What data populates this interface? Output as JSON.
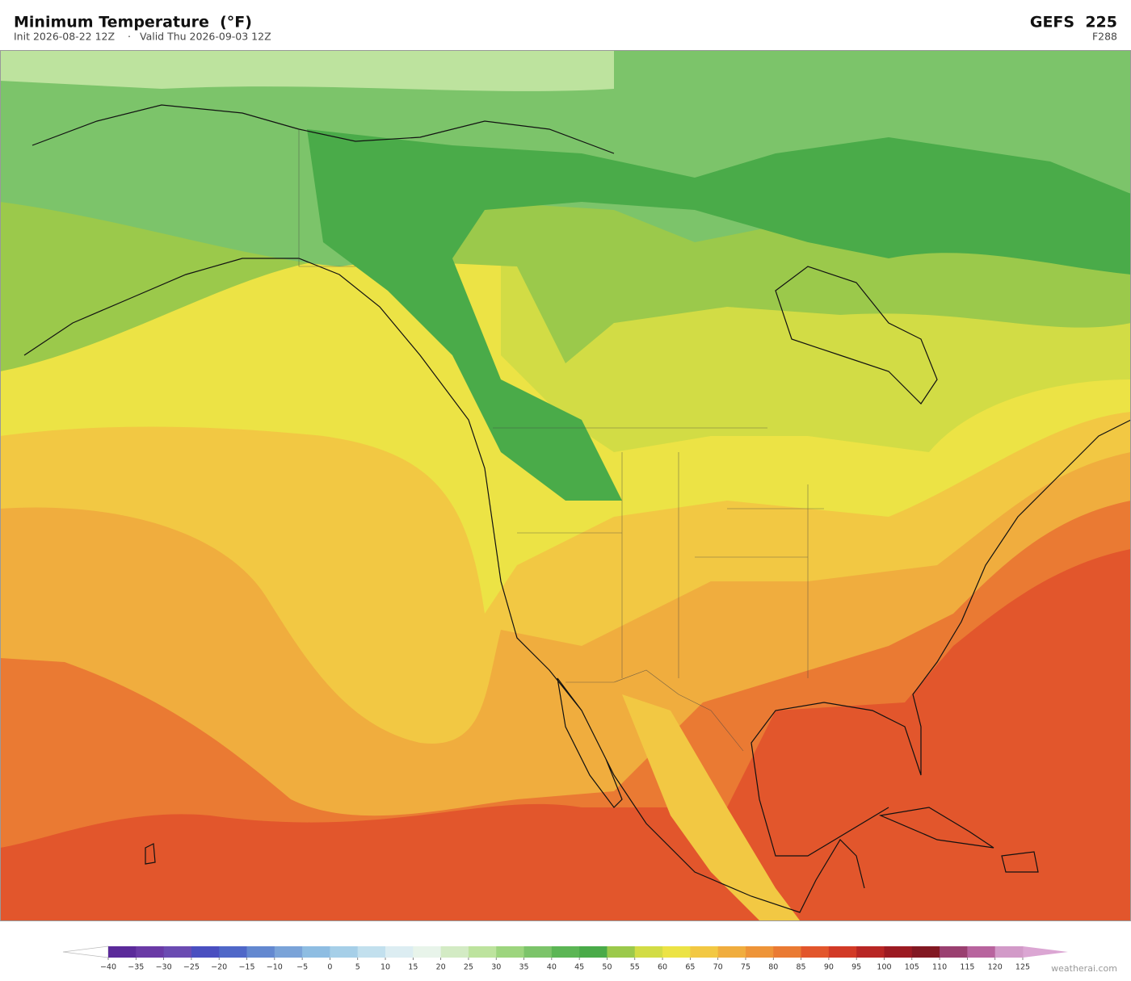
{
  "header": {
    "title": "Minimum Temperature  (°F)",
    "init": "Init 2026-08-22 12Z",
    "separator": "·",
    "valid": "Valid Thu 2026-09-03 12Z",
    "model": "GEFS  225",
    "forecast_hour": "F288"
  },
  "colorbar": {
    "ticks": [
      {
        "value": -40,
        "label": "−40"
      },
      {
        "value": -35,
        "label": "−35"
      },
      {
        "value": -30,
        "label": "−30"
      },
      {
        "value": -25,
        "label": "−25"
      },
      {
        "value": -20,
        "label": "−20"
      },
      {
        "value": -15,
        "label": "−15"
      },
      {
        "value": -10,
        "label": "−10"
      },
      {
        "value": -5,
        "label": "−5"
      },
      0,
      5,
      10,
      15,
      20,
      25,
      30,
      35,
      40,
      45,
      50,
      55,
      60,
      65,
      70,
      75,
      80,
      85,
      90,
      95,
      100,
      105,
      110,
      115,
      120,
      125
    ],
    "colors": [
      "#5b2a9a",
      "#6a3aa6",
      "#6b4bb2",
      "#4a4fc0",
      "#4f67c8",
      "#6388d0",
      "#7aa3d8",
      "#8ebde2",
      "#a6cfe8",
      "#c2e0ee",
      "#dcedf2",
      "#e8f4ea",
      "#d3ebc4",
      "#bde39e",
      "#9dd57e",
      "#7cc46a",
      "#5cb655",
      "#4aab49",
      "#9bc94b",
      "#d2dc45",
      "#ece345",
      "#f2c843",
      "#f0ad3e",
      "#ee9438",
      "#ea7a33",
      "#e2562c",
      "#d23a26",
      "#b82624",
      "#9c1a22",
      "#821822",
      "#9a4070",
      "#b8649e",
      "#d29ac8"
    ],
    "under_color": "#ffffff",
    "over_color": "#dba6d3"
  },
  "watermark": "weatherai.com"
}
